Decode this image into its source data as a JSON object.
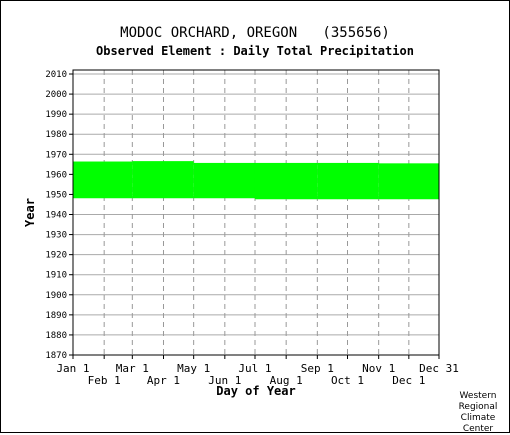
{
  "title": "MODOC ORCHARD, OREGON   (355656)",
  "subtitle": "Observed Element : Daily Total Precipitation",
  "credit_lines": [
    "Western",
    "Regional",
    "Climate",
    "Center"
  ],
  "chart_data": {
    "type": "area",
    "title": "MODOC ORCHARD, OREGON   (355656)",
    "subtitle": "Observed Element : Daily Total Precipitation",
    "xlabel": "Day of Year",
    "ylabel": "Year",
    "xlim": [
      1,
      365
    ],
    "ylim": [
      1870,
      2012
    ],
    "x_ticks_top_row": [
      {
        "label": "Jan 1",
        "day": 1
      },
      {
        "label": "Mar 1",
        "day": 60
      },
      {
        "label": "May 1",
        "day": 121
      },
      {
        "label": "Jul 1",
        "day": 182
      },
      {
        "label": "Sep 1",
        "day": 244
      },
      {
        "label": "Nov 1",
        "day": 305
      },
      {
        "label": "Dec 31",
        "day": 365
      }
    ],
    "x_ticks_bottom_row": [
      {
        "label": "Feb 1",
        "day": 32
      },
      {
        "label": "Apr 1",
        "day": 91
      },
      {
        "label": "Jun 1",
        "day": 152
      },
      {
        "label": "Aug 1",
        "day": 213
      },
      {
        "label": "Oct 1",
        "day": 274
      },
      {
        "label": "Dec 1",
        "day": 335
      }
    ],
    "y_ticks": [
      2010,
      2000,
      1990,
      1980,
      1970,
      1960,
      1950,
      1940,
      1930,
      1920,
      1910,
      1900,
      1890,
      1880,
      1870
    ],
    "grid": true,
    "series_color": "#00ff00",
    "coverage_segments": [
      {
        "day_start": 1,
        "day_end": 60,
        "year_start": 1948.1,
        "year_end": 1966.4
      },
      {
        "day_start": 60,
        "day_end": 121,
        "year_start": 1948.1,
        "year_end": 1966.6
      },
      {
        "day_start": 121,
        "day_end": 182,
        "year_start": 1948.1,
        "year_end": 1965.7
      },
      {
        "day_start": 182,
        "day_end": 244,
        "year_start": 1947.6,
        "year_end": 1965.7
      },
      {
        "day_start": 244,
        "day_end": 305,
        "year_start": 1947.6,
        "year_end": 1965.7
      },
      {
        "day_start": 305,
        "day_end": 365,
        "year_start": 1947.6,
        "year_end": 1965.5
      }
    ]
  }
}
